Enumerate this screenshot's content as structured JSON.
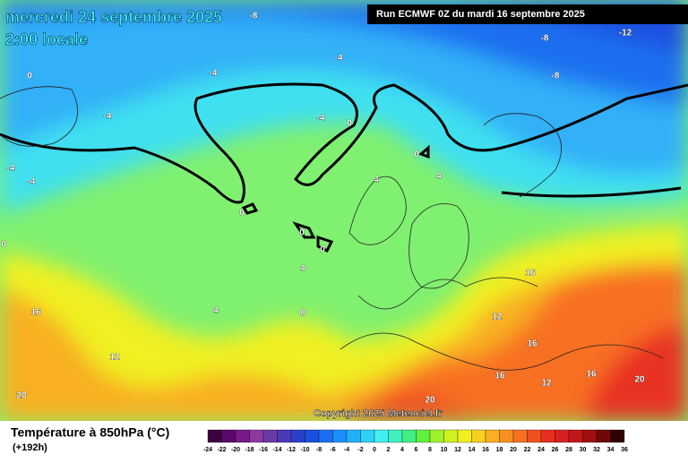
{
  "header": {
    "title": "mercredi 24 septembre 2025",
    "subtitle": "2:00 locale",
    "run": "Run ECMWF 0Z du mardi 16 septembre 2025"
  },
  "copyright": "Copyright 2025 Meteociel.fr",
  "legend": {
    "title": "Température à 850hPa (°C)",
    "lead": "(+192h)",
    "ticks": [
      -24,
      -22,
      -20,
      -18,
      -16,
      -14,
      -12,
      -10,
      -8,
      -6,
      -4,
      -2,
      0,
      2,
      4,
      6,
      8,
      10,
      12,
      14,
      16,
      18,
      20,
      22,
      24,
      26,
      28,
      30,
      32,
      34,
      36
    ],
    "colors": [
      "#3c0040",
      "#5a0a6a",
      "#7a1a8a",
      "#8c3aa0",
      "#6a3aa8",
      "#4a3ab8",
      "#2a40c8",
      "#1a50e0",
      "#1a70f0",
      "#1a90f8",
      "#20b0f8",
      "#30d0f8",
      "#40f0f0",
      "#40f0c0",
      "#40f080",
      "#60f040",
      "#a0f030",
      "#d0f020",
      "#f0f020",
      "#f8d020",
      "#f8b020",
      "#f89020",
      "#f87020",
      "#f05020",
      "#e83020",
      "#d82020",
      "#c01818",
      "#a01010",
      "#700808",
      "#300000"
    ]
  },
  "contour_labels": [
    "-8",
    "-8",
    "-12",
    "-4",
    "-8",
    "0",
    "-4",
    "-4",
    "-4",
    "0",
    "0",
    "4",
    "-4",
    "-4",
    "4",
    "0",
    "0",
    "0",
    "0",
    "4",
    "16",
    "16",
    "4",
    "8",
    "12",
    "16",
    "12",
    "16",
    "16",
    "12",
    "20",
    "20",
    "20"
  ]
}
